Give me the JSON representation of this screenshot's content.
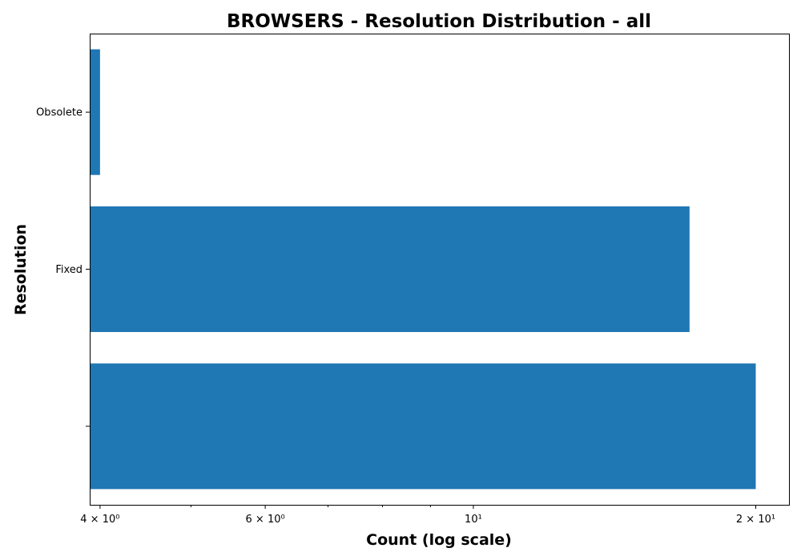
{
  "chart_data": {
    "type": "bar",
    "orientation": "horizontal",
    "title": "BROWSERS - Resolution Distribution - all",
    "xlabel": "Count (log scale)",
    "ylabel": "Resolution",
    "x_scale": "log",
    "xlim": [
      3.9,
      21.7
    ],
    "categories": [
      "",
      "Fixed",
      "Obsolete"
    ],
    "values": [
      20,
      17,
      4
    ],
    "bar_color": "#1f77b4",
    "x_major_ticks": [
      {
        "value": 4,
        "label": "4 × 10⁰"
      },
      {
        "value": 6,
        "label": "6 × 10⁰"
      },
      {
        "value": 10,
        "label": "10¹"
      },
      {
        "value": 20,
        "label": "2 × 10¹"
      }
    ],
    "x_minor_ticks": [
      5,
      7,
      8,
      9
    ],
    "grid": false,
    "legend": "none"
  }
}
